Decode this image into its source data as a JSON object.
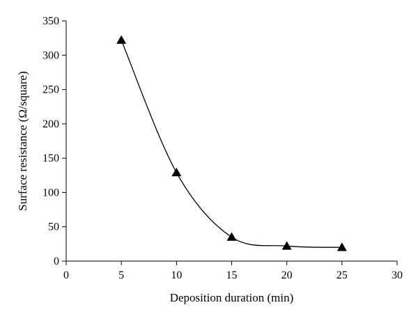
{
  "chart_data": {
    "type": "line",
    "title": "",
    "xlabel": "Deposition duration (min)",
    "ylabel": "Surface resistance (Ω/square)",
    "xlim": [
      0,
      30
    ],
    "ylim": [
      0,
      350
    ],
    "x_ticks": [
      0,
      5,
      10,
      15,
      20,
      25,
      30
    ],
    "y_ticks": [
      0,
      50,
      100,
      150,
      200,
      250,
      300,
      350
    ],
    "grid": false,
    "legend": "none",
    "smooth": true,
    "marker": "triangle",
    "colors": {
      "line": "#000000",
      "marker": "#000000",
      "axis": "#000000"
    },
    "series": [
      {
        "x": [
          5,
          10,
          15,
          20,
          25
        ],
        "y": [
          322,
          129,
          35,
          22,
          20
        ]
      }
    ]
  }
}
